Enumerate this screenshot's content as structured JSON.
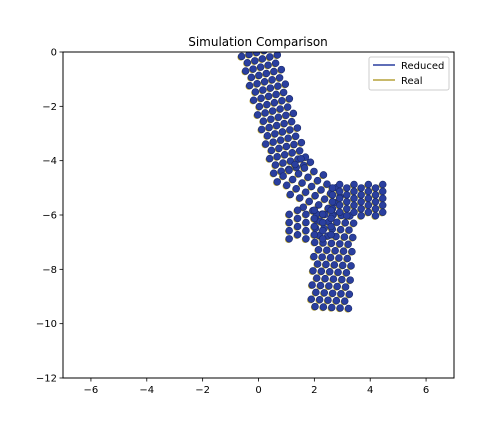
{
  "chart_data": {
    "type": "scatter",
    "title": "Simulation Comparison",
    "xlabel": "",
    "ylabel": "",
    "xlim": [
      -7,
      7
    ],
    "ylim": [
      -12,
      0
    ],
    "x_ticks": [
      -6,
      -4,
      -2,
      0,
      2,
      4,
      6
    ],
    "y_ticks": [
      0,
      -2,
      -4,
      -6,
      -8,
      -10,
      -12
    ],
    "x_tick_labels": [
      "−6",
      "−4",
      "−2",
      "0",
      "2",
      "4",
      "6"
    ],
    "y_tick_labels": [
      "0",
      "−2",
      "−4",
      "−6",
      "−8",
      "−10",
      "−12"
    ],
    "grid": false,
    "legend_position": "top-right",
    "series": [
      {
        "name": "Reduced",
        "color": "#2a3f9f",
        "marker_edge": "#1a2a6a",
        "segments": [
          {
            "x0": 0.0,
            "y0": 0.0,
            "x1": 1.15,
            "y1": -4.3,
            "width": 1.25,
            "rows": 17,
            "cols": 5
          },
          {
            "x0": 1.15,
            "y0": -4.3,
            "x1": 2.55,
            "y1": -5.7,
            "width": 1.35,
            "rows": 7,
            "cols": 5
          },
          {
            "x0": 2.75,
            "y0": -6.0,
            "x1": 2.55,
            "y1": -9.4,
            "width": 1.35,
            "rows": 14,
            "cols": 5
          },
          {
            "x0": 2.65,
            "y0": -5.45,
            "x1": 4.45,
            "y1": -5.45,
            "width": 1.15,
            "rows": 8,
            "cols": 5
          },
          {
            "x0": 1.1,
            "y0": -6.35,
            "x1": 2.6,
            "y1": -6.35,
            "width": 1.05,
            "rows": 6,
            "cols": 4
          }
        ]
      },
      {
        "name": "Real",
        "color": "#b5a23a"
      }
    ]
  }
}
